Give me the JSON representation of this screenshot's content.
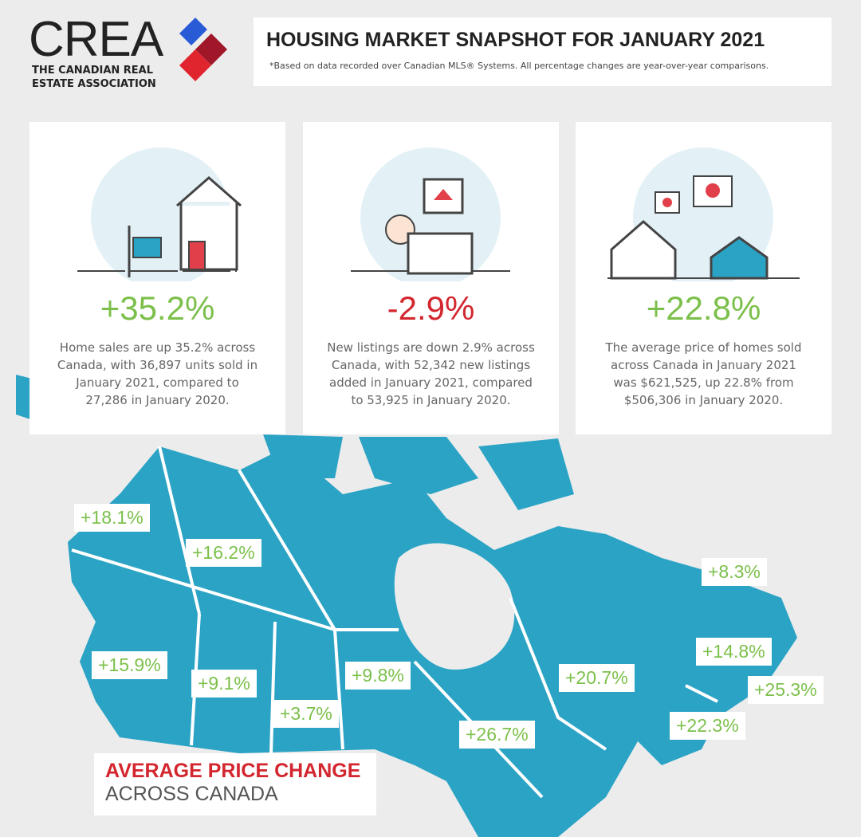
{
  "header": {
    "logo": "CREA",
    "org": "THE CANADIAN REAL ESTATE ASSOCIATION",
    "title": "HOUSING MARKET SNAPSHOT FOR JANUARY 2021",
    "note": "*Based on data recorded over Canadian MLS® Systems. All percentage changes are year-over-year comparisons."
  },
  "cards": [
    {
      "stat": "+35.2%",
      "text": "Home sales are up 35.2% across Canada, with 36,897 units sold in January 2021, compared to 27,286 in January 2020."
    },
    {
      "stat": "-2.9%",
      "text": "New listings are down 2.9% across Canada, with 52,342 new listings added in January 2021, compared to 53,925 in January 2020."
    },
    {
      "stat": "+22.8%",
      "text": "The average price of homes sold across Canada in January 2021 was $621,525, up 22.8% from $506,306 in January 2020."
    }
  ],
  "map": {
    "title": "AVERAGE PRICE CHANGE",
    "subtitle": "ACROSS CANADA",
    "labels": [
      "+18.1%",
      "+16.2%",
      "+8.3%",
      "+15.9%",
      "+9.1%",
      "+9.8%",
      "+14.8%",
      "+20.7%",
      "+25.3%",
      "+3.7%",
      "+22.3%",
      "+26.7%"
    ]
  }
}
